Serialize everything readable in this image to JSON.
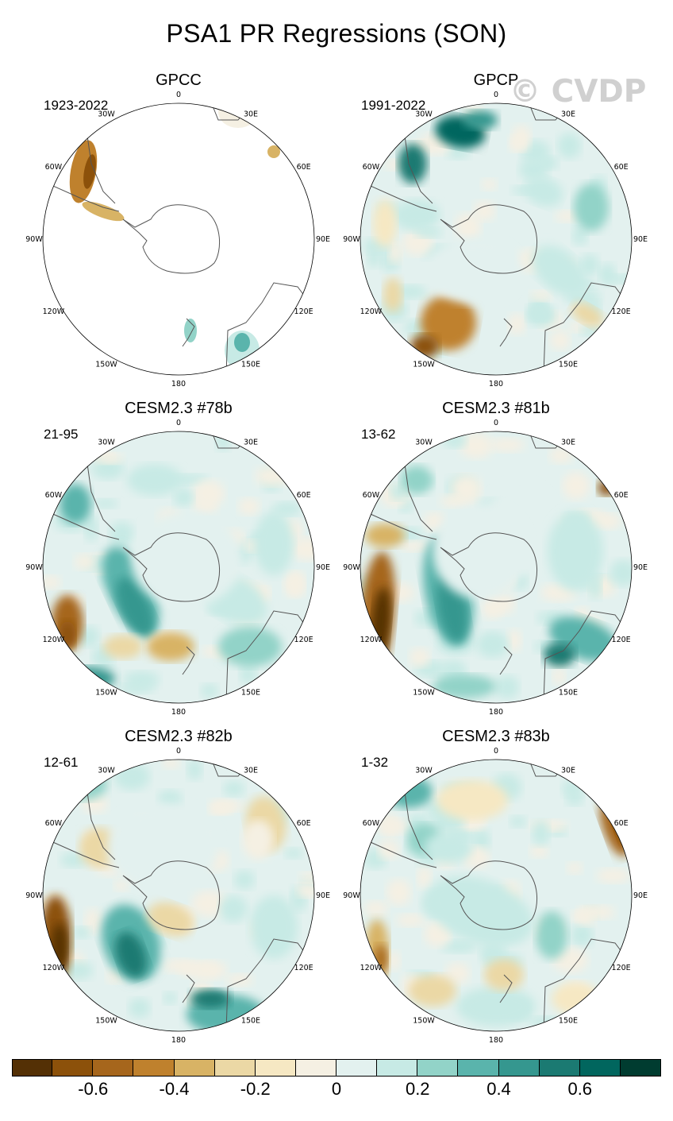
{
  "title": "PSA1 PR Regressions (SON)",
  "watermark": "© CVDP",
  "panels": [
    {
      "name": "GPCC",
      "period": "1923-2022"
    },
    {
      "name": "GPCP",
      "period": "1991-2022"
    },
    {
      "name": "CESM2.3 #78b",
      "period": "21-95"
    },
    {
      "name": "CESM2.3 #81b",
      "period": "13-62"
    },
    {
      "name": "CESM2.3 #82b",
      "period": "12-61"
    },
    {
      "name": "CESM2.3 #83b",
      "period": "1-32"
    }
  ],
  "longitude_labels": [
    "0",
    "30E",
    "60E",
    "90E",
    "120E",
    "150E",
    "180",
    "150W",
    "120W",
    "90W",
    "60W",
    "30W"
  ],
  "colorbar": {
    "colors": [
      "#543005",
      "#8c510a",
      "#a6661c",
      "#bf812d",
      "#d8b365",
      "#ebd8a5",
      "#f6e8c3",
      "#f5f0e3",
      "#e3f1ef",
      "#c7eae5",
      "#92d3c8",
      "#5ab4ac",
      "#35978f",
      "#1b7a72",
      "#01665e",
      "#003c30"
    ],
    "tick_labels": [
      "-0.6",
      "-0.4",
      "-0.2",
      "0",
      "0.2",
      "0.4",
      "0.6"
    ]
  }
}
